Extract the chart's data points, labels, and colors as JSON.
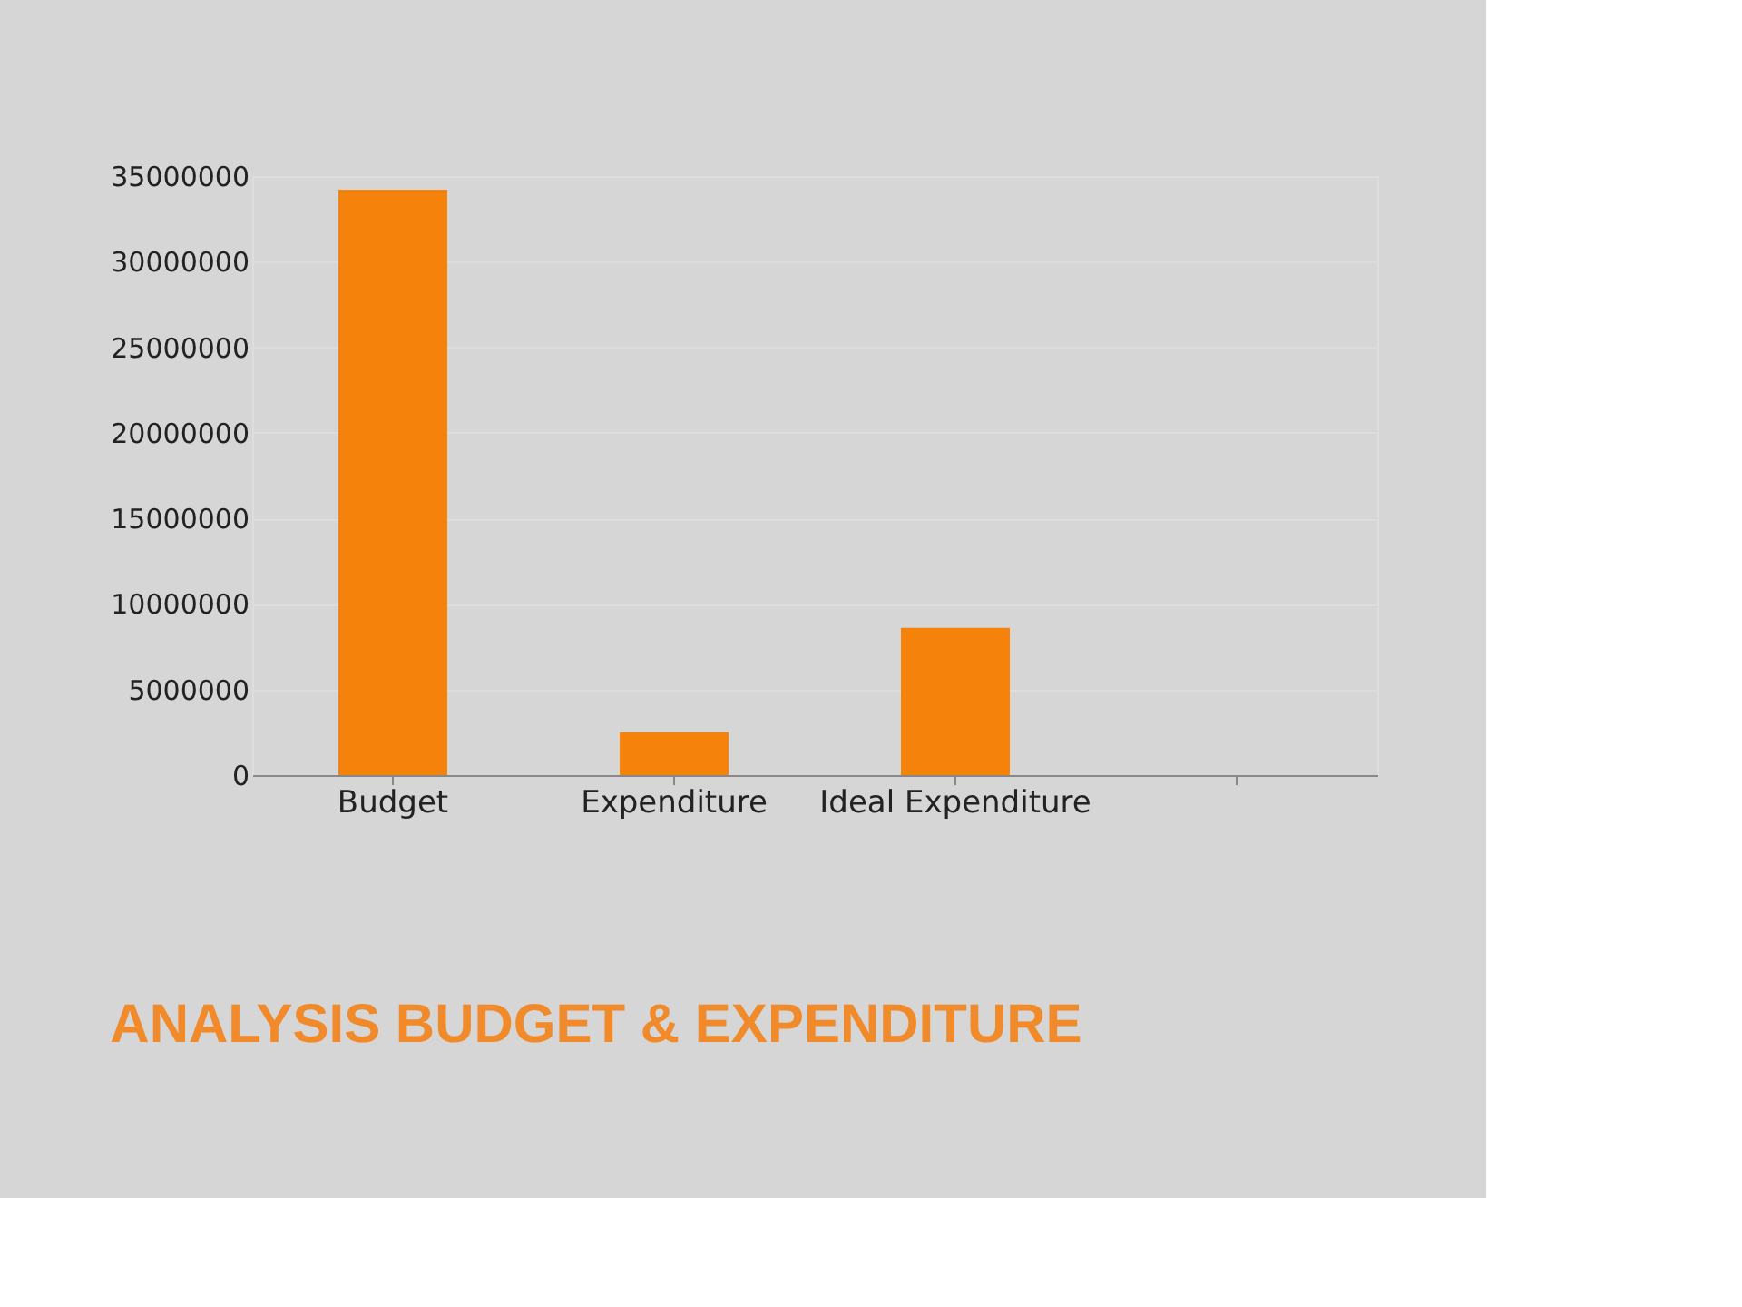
{
  "chart_data": {
    "type": "bar",
    "title": "ANALYSIS BUDGET & EXPENDITURE",
    "categories": [
      "Budget",
      "Expenditure",
      "Ideal Expenditure",
      null
    ],
    "values": [
      34200000,
      2500000,
      8600000,
      null
    ],
    "color": "#f5820a",
    "ylim": [
      0,
      35000000
    ],
    "yticks": [
      0,
      5000000,
      10000000,
      15000000,
      20000000,
      25000000,
      30000000,
      35000000
    ],
    "grid": "y"
  }
}
